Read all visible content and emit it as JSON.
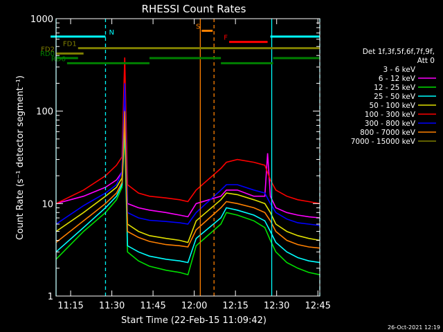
{
  "chart_data": {
    "type": "line",
    "title": "RHESSI Count Rates",
    "xlabel": "Start Time (22-Feb-15 11:09:42)",
    "ylabel": "Count Rate (s⁻¹ detector segment⁻¹)",
    "yscale": "log",
    "ylim": [
      1,
      1000
    ],
    "xlim_minutes": [
      0,
      96
    ],
    "x_ticks": [
      "11:15",
      "11:30",
      "11:45",
      "12:00",
      "12:15",
      "12:30",
      "12:45"
    ],
    "y_ticks": [
      "1",
      "10",
      "100",
      "1000"
    ],
    "timestamp": "26-Oct-2021 12:19",
    "legend": {
      "placement": "right",
      "header": [
        "Det 1f,3f,5f,6f,7f,9f,",
        "Att 0"
      ],
      "entries": [
        {
          "label": "3 - 6 keV",
          "color": "#000000"
        },
        {
          "label": "6 - 12 keV",
          "color": "#ff00ff"
        },
        {
          "label": "12 - 25 keV",
          "color": "#00e000"
        },
        {
          "label": "25 - 50 keV",
          "color": "#00ffff"
        },
        {
          "label": "50 - 100 keV",
          "color": "#e0e000"
        },
        {
          "label": "100 - 300 keV",
          "color": "#ff0000"
        },
        {
          "label": "300 - 800 keV",
          "color": "#0000ff"
        },
        {
          "label": "800 - 7000 keV",
          "color": "#ff8000"
        },
        {
          "label": "7000 - 15000 keV",
          "color": "#808000"
        }
      ]
    },
    "series": [
      {
        "name": "3 - 6 keV",
        "color": "#000000",
        "x": [
          0,
          10,
          18,
          22,
          24,
          25,
          26,
          30,
          34,
          40,
          45,
          48,
          51,
          60,
          62,
          66,
          72,
          76,
          78,
          80,
          84,
          88,
          92,
          96
        ],
        "y": [
          1.6,
          3.5,
          6,
          9,
          14,
          45,
          6,
          4,
          3.2,
          3,
          2.8,
          2.6,
          6,
          18,
          22,
          20,
          16,
          14,
          8,
          5,
          2.6,
          2,
          1.7,
          1.6
        ]
      },
      {
        "name": "6 - 12 keV",
        "color": "#ff00ff",
        "x": [
          0,
          10,
          18,
          22,
          24,
          25,
          26,
          30,
          34,
          40,
          45,
          48,
          51,
          60,
          62,
          66,
          72,
          76,
          77,
          78,
          80,
          84,
          88,
          92,
          96
        ],
        "y": [
          10,
          12,
          15,
          18,
          22,
          160,
          10,
          9,
          8.5,
          8,
          7.5,
          7.2,
          10,
          12,
          14,
          14,
          12,
          12,
          35,
          12,
          9,
          8,
          7.5,
          7.2,
          7
        ]
      },
      {
        "name": "12 - 25 keV",
        "color": "#00e000",
        "x": [
          0,
          10,
          18,
          22,
          24,
          25,
          26,
          30,
          34,
          40,
          45,
          48,
          51,
          60,
          62,
          66,
          72,
          76,
          78,
          80,
          84,
          88,
          92,
          96
        ],
        "y": [
          2.5,
          5,
          8,
          11,
          15,
          60,
          3,
          2.4,
          2.1,
          1.9,
          1.8,
          1.7,
          3.5,
          6,
          8,
          7.5,
          6.5,
          5.5,
          4,
          3,
          2.3,
          2,
          1.8,
          1.7
        ]
      },
      {
        "name": "25 - 50 keV",
        "color": "#00ffff",
        "x": [
          0,
          10,
          18,
          22,
          24,
          25,
          26,
          30,
          34,
          40,
          45,
          48,
          51,
          60,
          62,
          66,
          72,
          76,
          78,
          80,
          84,
          88,
          92,
          96
        ],
        "y": [
          3,
          5.5,
          9,
          12,
          16,
          70,
          3.5,
          3,
          2.7,
          2.5,
          2.4,
          2.3,
          4.2,
          7,
          9,
          8.5,
          7.5,
          6.5,
          5,
          3.8,
          3,
          2.6,
          2.4,
          2.3
        ]
      },
      {
        "name": "50 - 100 keV",
        "color": "#e0e000",
        "x": [
          0,
          10,
          18,
          22,
          24,
          25,
          26,
          30,
          34,
          40,
          45,
          48,
          51,
          60,
          62,
          66,
          72,
          76,
          78,
          80,
          84,
          88,
          92,
          96
        ],
        "y": [
          5,
          8,
          12,
          15,
          19,
          85,
          6,
          5,
          4.5,
          4.2,
          4,
          3.8,
          6.5,
          11,
          13,
          12.5,
          11,
          10,
          8,
          6,
          5,
          4.5,
          4.2,
          4
        ]
      },
      {
        "name": "100 - 300 keV",
        "color": "#ff0000",
        "x": [
          0,
          10,
          18,
          22,
          24,
          25,
          26,
          30,
          34,
          40,
          45,
          48,
          51,
          60,
          62,
          66,
          72,
          76,
          78,
          80,
          84,
          88,
          92,
          96
        ],
        "y": [
          10,
          14,
          20,
          26,
          32,
          380,
          16,
          13,
          12,
          11.5,
          11,
          10.5,
          14,
          24,
          28,
          30,
          28,
          26,
          18,
          14,
          12,
          11,
          10.5,
          10
        ]
      },
      {
        "name": "300 - 800 keV",
        "color": "#0000ff",
        "x": [
          0,
          10,
          18,
          22,
          24,
          25,
          26,
          30,
          34,
          40,
          45,
          48,
          51,
          60,
          62,
          66,
          72,
          76,
          78,
          80,
          84,
          88,
          92,
          96
        ],
        "y": [
          6,
          9.5,
          13,
          16,
          22,
          200,
          8,
          7,
          6.6,
          6.4,
          6.2,
          6,
          8,
          14,
          16,
          16,
          14,
          13,
          10,
          8,
          6.8,
          6.2,
          6,
          5.8
        ]
      },
      {
        "name": "800 - 7000 keV",
        "color": "#ff8000",
        "x": [
          0,
          10,
          18,
          22,
          24,
          25,
          26,
          30,
          34,
          40,
          45,
          48,
          51,
          60,
          62,
          66,
          72,
          76,
          78,
          80,
          84,
          88,
          92,
          96
        ],
        "y": [
          3.8,
          6.5,
          10,
          13,
          17,
          100,
          5,
          4.3,
          3.9,
          3.6,
          3.5,
          3.4,
          5.2,
          9,
          10.5,
          10,
          9,
          8,
          6.5,
          5,
          4,
          3.6,
          3.4,
          3.3
        ]
      }
    ],
    "annotations": [
      {
        "label": "N",
        "color": "#00ffff",
        "x0": -2,
        "x1": 18,
        "y": 640
      },
      {
        "label": "",
        "color": "#00ffff",
        "x0": 78,
        "x1": 96,
        "y": 640
      },
      {
        "label": "S",
        "color": "#ff8000",
        "x0": 53,
        "x1": 57,
        "y": 740
      },
      {
        "label": "F",
        "color": "#ff0000",
        "x0": 63,
        "x1": 77,
        "y": 560
      },
      {
        "label": "FD1",
        "color": "#808000",
        "x0": 8,
        "x1": 96,
        "y": 480
      },
      {
        "label": "FD2",
        "color": "#808000",
        "x0": 0,
        "x1": 10,
        "y": 420
      },
      {
        "label": "RD0",
        "color": "#008000",
        "x0": 0,
        "x1": 8,
        "y": 375
      },
      {
        "label": "RD6",
        "color": "#008000",
        "x0": 4,
        "x1": 34,
        "y": 330
      },
      {
        "label": "",
        "color": "#008000",
        "x0": 34,
        "x1": 60,
        "y": 375
      },
      {
        "label": "",
        "color": "#008000",
        "x0": 60,
        "x1": 79,
        "y": 330
      },
      {
        "label": "",
        "color": "#008000",
        "x0": 79,
        "x1": 96,
        "y": 375
      }
    ],
    "vlines": [
      {
        "x": 0,
        "color": "#00ffff",
        "style": "solid"
      },
      {
        "x": 18,
        "color": "#00ffff",
        "style": "dashed"
      },
      {
        "x": 52.5,
        "color": "#ff8000",
        "style": "solid"
      },
      {
        "x": 57.5,
        "color": "#ff8000",
        "style": "dashed"
      },
      {
        "x": 78.5,
        "color": "#00ffff",
        "style": "solid"
      },
      {
        "x": 96,
        "color": "#00ffff",
        "style": "dashed"
      }
    ]
  }
}
